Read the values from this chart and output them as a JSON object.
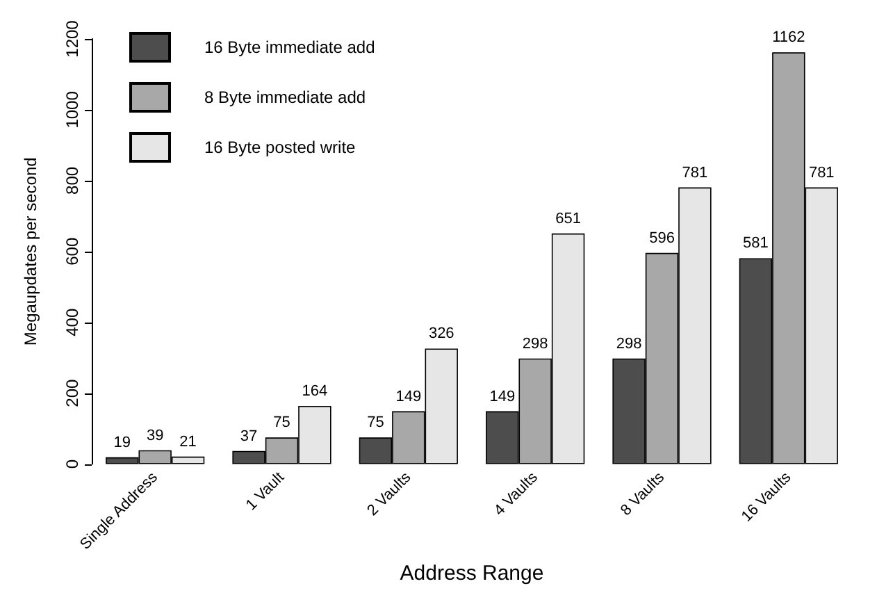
{
  "chart_data": {
    "type": "bar",
    "xlabel": "Address Range",
    "ylabel": "Megaupdates per second",
    "categories": [
      "Single Address",
      "1 Vault",
      "2 Vaults",
      "4 Vaults",
      "8 Vaults",
      "16 Vaults"
    ],
    "series": [
      {
        "name": "16 Byte immediate add",
        "color": "#4d4d4d",
        "values": [
          19,
          37,
          75,
          149,
          298,
          581
        ]
      },
      {
        "name": "8 Byte immediate add",
        "color": "#a8a8a8",
        "values": [
          39,
          75,
          149,
          298,
          596,
          1162
        ]
      },
      {
        "name": "16 Byte posted write",
        "color": "#e6e6e6",
        "values": [
          21,
          164,
          326,
          651,
          781,
          781
        ]
      }
    ],
    "ylim": [
      0,
      1200
    ],
    "yticks": [
      0,
      200,
      400,
      600,
      800,
      1000,
      1200
    ],
    "grid": false,
    "legend": "top left",
    "data_labels": true
  }
}
